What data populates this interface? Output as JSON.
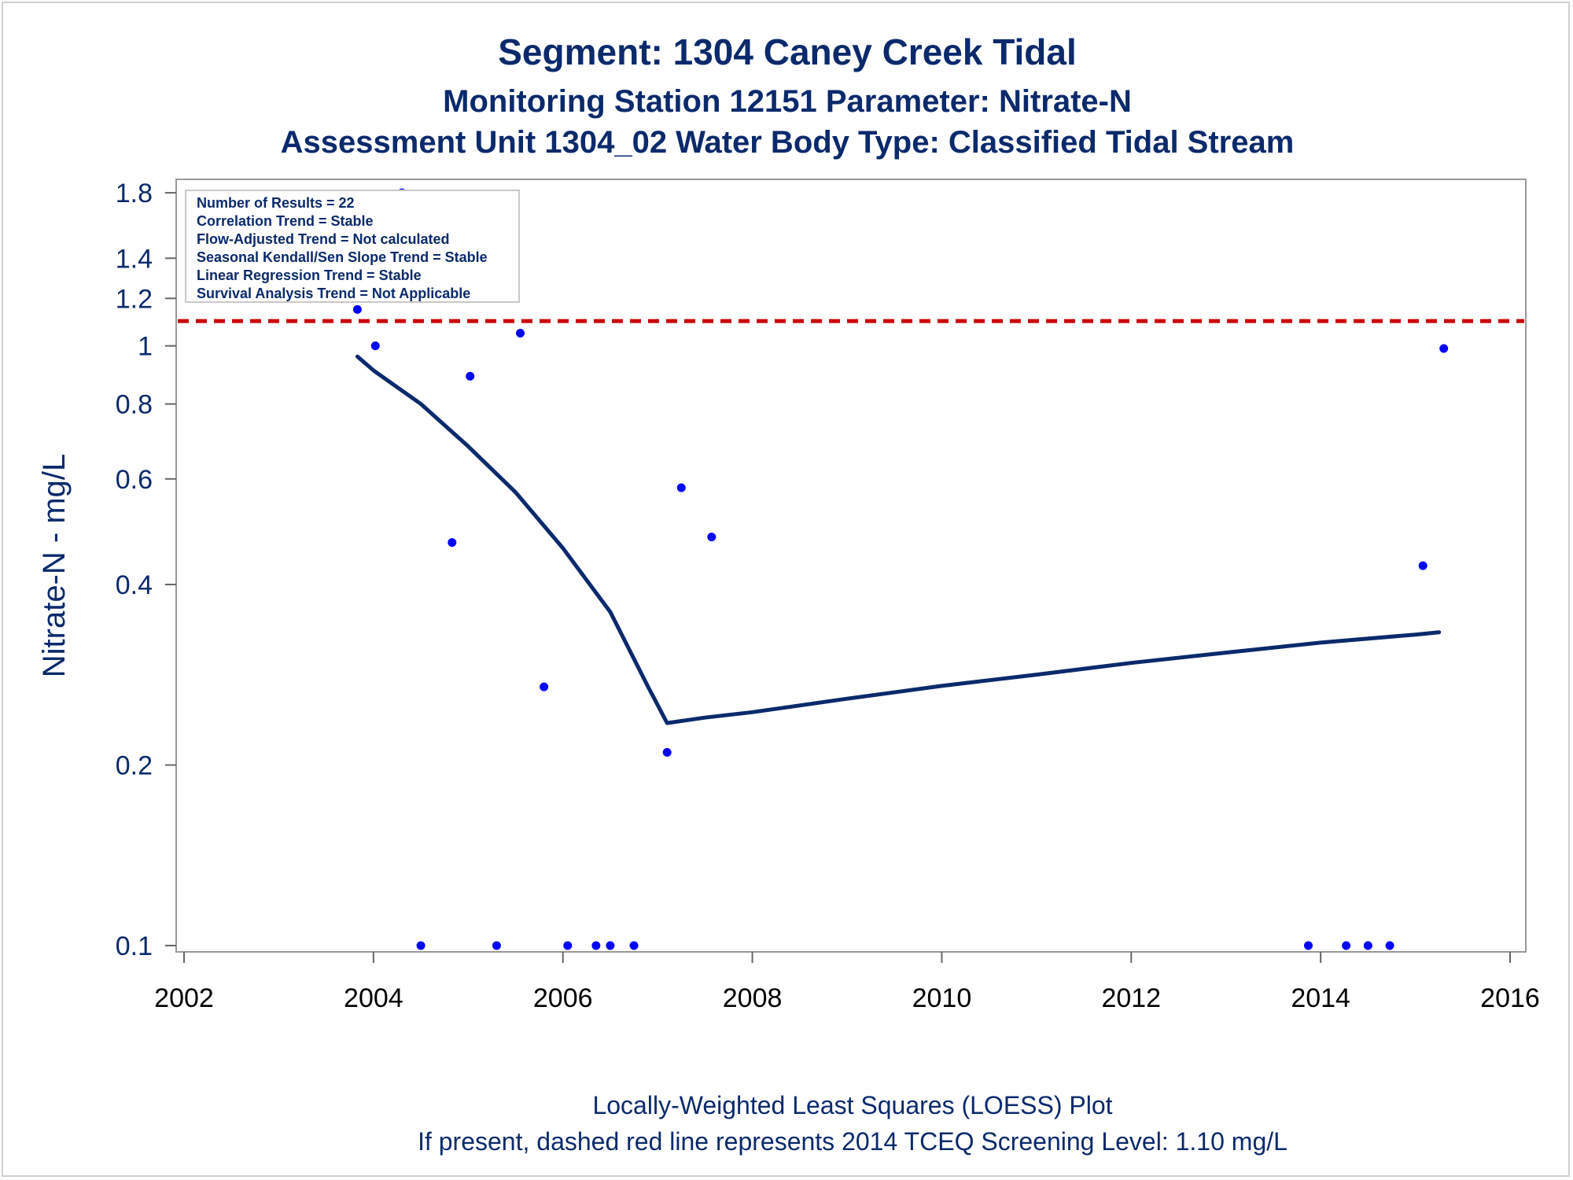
{
  "chart_data": {
    "type": "scatter",
    "title": "Segment: 1304  Caney Creek Tidal",
    "subtitle": "Monitoring Station 12151 Parameter: Nitrate-N",
    "subtitle2": "Assessment Unit 1304_02   Water Body Type: Classified Tidal Stream",
    "xlabel": "",
    "ylabel": "Nitrate-N - mg/L",
    "yscale": "log",
    "xlim": [
      2002,
      2016
    ],
    "ylim": [
      0.1,
      1.85
    ],
    "x_ticks": [
      "2002",
      "2004",
      "2006",
      "2008",
      "2010",
      "2012",
      "2014",
      "2016"
    ],
    "y_ticks": [
      "0.1",
      "0.2",
      "0.4",
      "0.6",
      "0.8",
      "1",
      "1.2",
      "1.4",
      "1.8"
    ],
    "grid": false,
    "series": [
      {
        "type": "scatter",
        "color": "#0000ff",
        "points": [
          {
            "x": 2003.83,
            "y": 1.15
          },
          {
            "x": 2004.02,
            "y": 1.0
          },
          {
            "x": 2004.3,
            "y": 1.8
          },
          {
            "x": 2004.5,
            "y": 0.1
          },
          {
            "x": 2004.83,
            "y": 0.47
          },
          {
            "x": 2005.02,
            "y": 0.89
          },
          {
            "x": 2005.3,
            "y": 0.1
          },
          {
            "x": 2005.55,
            "y": 1.05
          },
          {
            "x": 2005.8,
            "y": 0.27
          },
          {
            "x": 2006.05,
            "y": 0.1
          },
          {
            "x": 2006.35,
            "y": 0.1
          },
          {
            "x": 2006.5,
            "y": 0.1
          },
          {
            "x": 2006.75,
            "y": 0.1
          },
          {
            "x": 2007.1,
            "y": 0.21
          },
          {
            "x": 2007.25,
            "y": 0.58
          },
          {
            "x": 2007.57,
            "y": 0.48
          },
          {
            "x": 2013.87,
            "y": 0.1
          },
          {
            "x": 2014.27,
            "y": 0.1
          },
          {
            "x": 2014.5,
            "y": 0.1
          },
          {
            "x": 2014.73,
            "y": 0.1
          },
          {
            "x": 2015.08,
            "y": 0.43
          },
          {
            "x": 2015.3,
            "y": 0.99
          }
        ]
      },
      {
        "type": "line",
        "color": "#0b2a6b",
        "points": [
          {
            "x": 2003.83,
            "y": 0.96
          },
          {
            "x": 2004.0,
            "y": 0.91
          },
          {
            "x": 2004.5,
            "y": 0.8
          },
          {
            "x": 2005.0,
            "y": 0.68
          },
          {
            "x": 2005.5,
            "y": 0.57
          },
          {
            "x": 2006.0,
            "y": 0.46
          },
          {
            "x": 2006.5,
            "y": 0.36
          },
          {
            "x": 2006.9,
            "y": 0.27
          },
          {
            "x": 2007.1,
            "y": 0.235
          },
          {
            "x": 2007.5,
            "y": 0.24
          },
          {
            "x": 2008.0,
            "y": 0.245
          },
          {
            "x": 2009.0,
            "y": 0.258
          },
          {
            "x": 2010.0,
            "y": 0.271
          },
          {
            "x": 2011.0,
            "y": 0.283
          },
          {
            "x": 2012.0,
            "y": 0.296
          },
          {
            "x": 2013.0,
            "y": 0.308
          },
          {
            "x": 2014.0,
            "y": 0.32
          },
          {
            "x": 2015.0,
            "y": 0.33
          },
          {
            "x": 2015.25,
            "y": 0.333
          }
        ]
      }
    ],
    "reference_line": {
      "y": 1.1,
      "color": "#cc0000",
      "style": "dashed"
    },
    "annotations": [
      "Number of Results = 22",
      "Correlation Trend = Stable",
      "Flow-Adjusted Trend = Not calculated",
      "Seasonal Kendall/Sen Slope Trend = Stable",
      "Linear Regression Trend = Stable",
      "Survival Analysis Trend = Not Applicable"
    ],
    "footnotes": [
      "Locally-Weighted Least Squares (LOESS) Plot",
      "If present, dashed red line represents 2014 TCEQ Screening Level: 1.10 mg/L"
    ]
  }
}
